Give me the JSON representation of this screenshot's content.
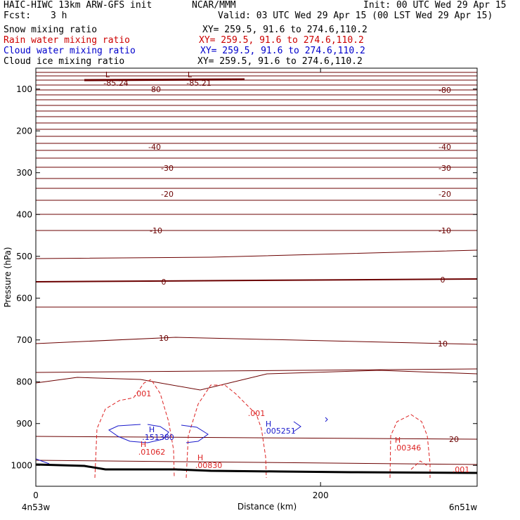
{
  "header": {
    "model": "HAIC-HIWC 13km ARW-GFS init",
    "org": "NCAR/MMM",
    "init": "Init: 00 UTC Wed 29 Apr 15",
    "fcst_label": "Fcst:",
    "fcst_value": "3 h",
    "valid": "Valid: 03 UTC Wed 29 Apr 15 (00 LST Wed 29 Apr 15)",
    "fields": [
      {
        "name": "Snow mixing ratio",
        "color": "#000000",
        "xy": "XY= 259.5, 91.6 to 274.6,110.2"
      },
      {
        "name": "Rain water mixing ratio",
        "color": "#cc0000",
        "xy": "XY= 259.5, 91.6 to 274.6,110.2"
      },
      {
        "name": "Cloud water mixing ratio",
        "color": "#0000cc",
        "xy": "XY= 259.5, 91.6 to 274.6,110.2"
      },
      {
        "name": "Cloud ice mixing ratio",
        "color": "#000000",
        "xy": "XY= 259.5, 91.6 to 274.6,110.2"
      }
    ]
  },
  "chart_data": {
    "type": "line",
    "xlabel": "Distance (km)",
    "ylabel": "Pressure (hPa)",
    "xlim": [
      0,
      310
    ],
    "ylim": [
      1050,
      50
    ],
    "x_ticks": [
      0,
      200
    ],
    "y_ticks": [
      100,
      200,
      300,
      400,
      500,
      600,
      700,
      800,
      900,
      1000
    ],
    "x_endpoints": {
      "left": "4n53w",
      "right": "6n51w"
    },
    "colors": {
      "temperature": "#6b0000",
      "rain": "#dd2222",
      "cloud": "#1a1acc",
      "terrain": "#000000"
    },
    "temperature_labels": [
      "-85.24",
      "-85.21",
      "-80",
      "-80",
      "-40",
      "-40",
      "-30",
      "-30",
      "-20",
      "-20",
      "-10",
      "-10",
      "0",
      "0",
      "10",
      "10",
      "20"
    ],
    "low_marks": [
      "L",
      "L"
    ],
    "rain_labels": [
      ".001",
      ".001",
      "H",
      ".01062",
      "H",
      ".00830",
      "H",
      ".00346",
      ".001"
    ],
    "cloud_labels": [
      "H",
      ".151380",
      "H",
      ".005251"
    ]
  }
}
